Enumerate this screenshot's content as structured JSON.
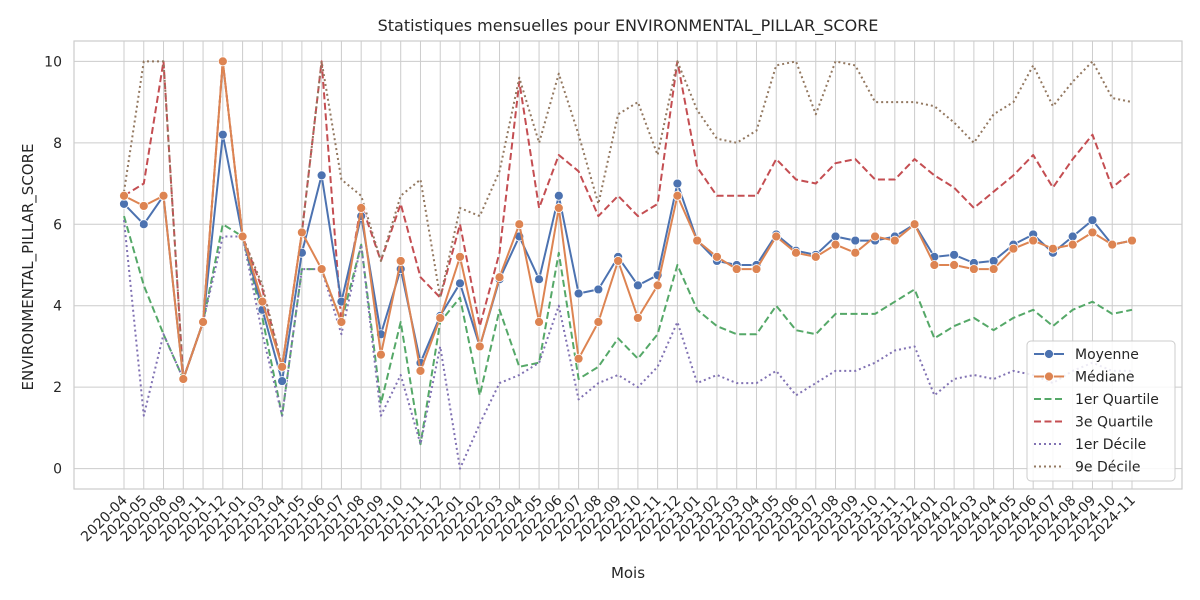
{
  "chart_data": {
    "type": "line",
    "title": "Statistiques mensuelles pour ENVIRONMENTAL_PILLAR_SCORE",
    "xlabel": "Mois",
    "ylabel": "ENVIRONMENTAL_PILLAR_SCORE",
    "ylim": [
      -0.5,
      10.5
    ],
    "yticks": [
      0,
      2,
      4,
      6,
      8,
      10
    ],
    "grid": true,
    "legend_position": "lower-right",
    "categories": [
      "2020-04",
      "2020-05",
      "2020-08",
      "2020-09",
      "2020-11",
      "2020-12",
      "2021-01",
      "2021-03",
      "2021-04",
      "2021-05",
      "2021-06",
      "2021-07",
      "2021-08",
      "2021-09",
      "2021-10",
      "2021-11",
      "2021-12",
      "2022-01",
      "2022-02",
      "2022-03",
      "2022-04",
      "2022-05",
      "2022-06",
      "2022-07",
      "2022-08",
      "2022-09",
      "2022-10",
      "2022-11",
      "2022-12",
      "2023-01",
      "2023-02",
      "2023-03",
      "2023-04",
      "2023-05",
      "2023-06",
      "2023-07",
      "2023-08",
      "2023-09",
      "2023-10",
      "2023-11",
      "2023-12",
      "2024-01",
      "2024-02",
      "2024-03",
      "2024-04",
      "2024-05",
      "2024-06",
      "2024-07",
      "2024-08",
      "2024-09",
      "2024-10",
      "2024-11"
    ],
    "series": [
      {
        "name": "Moyenne",
        "color": "#4c72b0",
        "style": "solid",
        "marker": true,
        "values": [
          6.5,
          6.0,
          6.7,
          2.2,
          3.6,
          8.2,
          5.7,
          3.9,
          2.15,
          5.3,
          7.2,
          4.1,
          6.2,
          3.3,
          4.9,
          2.6,
          3.75,
          4.55,
          3.0,
          4.65,
          5.7,
          4.65,
          6.7,
          4.3,
          4.4,
          5.2,
          4.5,
          4.75,
          7.0,
          5.6,
          5.1,
          5.0,
          5.0,
          5.75,
          5.35,
          5.25,
          5.7,
          5.6,
          5.6,
          5.7,
          6.0,
          5.2,
          5.25,
          5.05,
          5.1,
          5.5,
          5.75,
          5.3,
          5.7,
          6.1,
          5.5,
          5.6
        ]
      },
      {
        "name": "Médiane",
        "color": "#dd8452",
        "style": "solid",
        "marker": true,
        "values": [
          6.7,
          6.45,
          6.7,
          2.2,
          3.6,
          10.0,
          5.7,
          4.1,
          2.5,
          5.8,
          4.9,
          3.6,
          6.4,
          2.8,
          5.1,
          2.4,
          3.7,
          5.2,
          3.0,
          4.7,
          6.0,
          3.6,
          6.4,
          2.7,
          3.6,
          5.1,
          3.7,
          4.5,
          6.7,
          5.6,
          5.2,
          4.9,
          4.9,
          5.7,
          5.3,
          5.2,
          5.5,
          5.3,
          5.7,
          5.6,
          6.0,
          5.0,
          5.0,
          4.9,
          4.9,
          5.4,
          5.6,
          5.4,
          5.5,
          5.8,
          5.5,
          5.6
        ]
      },
      {
        "name": "1er Quartile",
        "color": "#55a868",
        "style": "dashed",
        "marker": false,
        "values": [
          6.2,
          4.5,
          3.3,
          2.2,
          3.6,
          6.0,
          5.7,
          3.7,
          1.3,
          4.9,
          4.9,
          3.6,
          5.5,
          1.6,
          3.6,
          0.6,
          3.6,
          4.2,
          1.8,
          3.9,
          2.5,
          2.6,
          5.3,
          2.2,
          2.5,
          3.2,
          2.7,
          3.3,
          5.0,
          3.9,
          3.5,
          3.3,
          3.3,
          4.0,
          3.4,
          3.3,
          3.8,
          3.8,
          3.8,
          4.1,
          4.4,
          3.2,
          3.5,
          3.7,
          3.4,
          3.7,
          3.9,
          3.5,
          3.9,
          4.1,
          3.8,
          3.9
        ]
      },
      {
        "name": "3e Quartile",
        "color": "#c44e52",
        "style": "dashed",
        "marker": false,
        "values": [
          6.7,
          7.0,
          10.0,
          2.2,
          3.6,
          10.0,
          5.7,
          4.4,
          2.5,
          5.8,
          10.0,
          3.6,
          6.5,
          5.1,
          6.5,
          4.7,
          4.2,
          6.0,
          3.5,
          5.3,
          9.5,
          6.4,
          7.7,
          7.3,
          6.2,
          6.7,
          6.2,
          6.5,
          10.0,
          7.4,
          6.7,
          6.7,
          6.7,
          7.6,
          7.1,
          7.0,
          7.5,
          7.6,
          7.1,
          7.1,
          7.6,
          7.2,
          6.9,
          6.4,
          6.8,
          7.2,
          7.7,
          6.9,
          7.6,
          8.2,
          6.9,
          7.3
        ]
      },
      {
        "name": "1er Décile",
        "color": "#8172b3",
        "style": "dotted",
        "marker": false,
        "values": [
          6.1,
          1.3,
          3.3,
          2.2,
          3.6,
          5.7,
          5.7,
          3.3,
          1.3,
          4.9,
          4.9,
          3.3,
          5.5,
          1.3,
          2.3,
          0.6,
          3.0,
          0.0,
          1.1,
          2.1,
          2.3,
          2.6,
          4.0,
          1.7,
          2.1,
          2.3,
          2.0,
          2.5,
          3.6,
          2.1,
          2.3,
          2.1,
          2.1,
          2.4,
          1.8,
          2.1,
          2.4,
          2.4,
          2.6,
          2.9,
          3.0,
          1.8,
          2.2,
          2.3,
          2.2,
          2.4,
          2.3,
          2.1,
          2.4,
          2.6,
          2.4,
          2.4
        ]
      },
      {
        "name": "9e Décile",
        "color": "#937860",
        "style": "dotted",
        "marker": false,
        "values": [
          6.8,
          10.0,
          10.0,
          2.2,
          3.6,
          10.0,
          5.7,
          4.5,
          2.5,
          5.8,
          10.0,
          7.1,
          6.7,
          5.1,
          6.7,
          7.1,
          4.2,
          6.4,
          6.2,
          7.3,
          9.6,
          8.0,
          9.7,
          8.2,
          6.5,
          8.7,
          9.0,
          7.7,
          10.0,
          8.8,
          8.1,
          8.0,
          8.3,
          9.9,
          10.0,
          8.7,
          10.0,
          9.9,
          9.0,
          9.0,
          9.0,
          8.9,
          8.5,
          8.0,
          8.7,
          9.0,
          9.9,
          8.9,
          9.5,
          10.0,
          9.1,
          9.0
        ]
      }
    ]
  }
}
